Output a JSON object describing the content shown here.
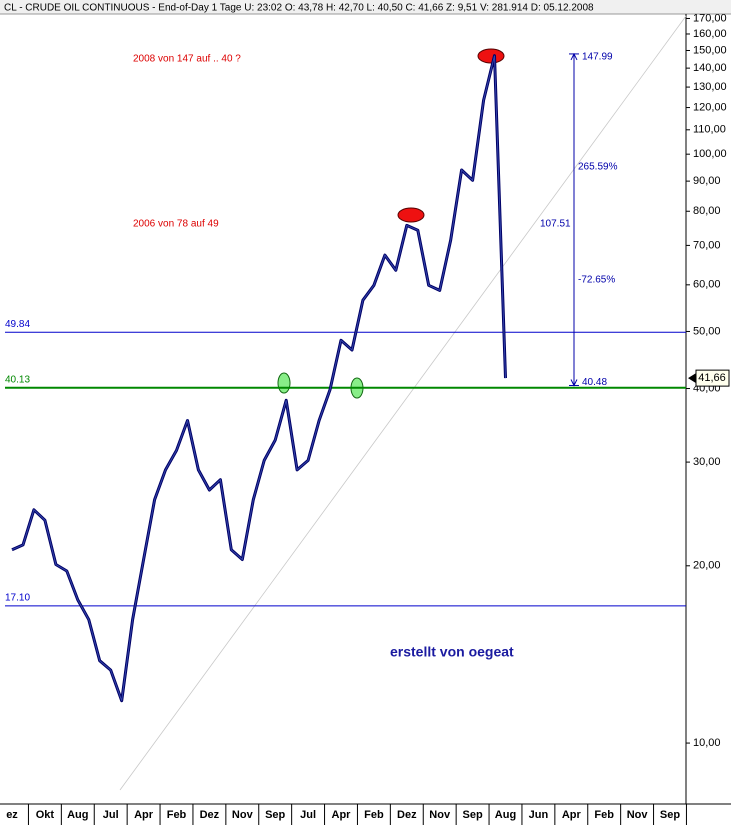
{
  "chart_data": {
    "type": "line",
    "title": "CL - CRUDE OIL CONTINUOUS - End-of-Day 1 Tage  U: 23:02  O: 43,78  H: 42,70  L: 40,50  C: 41,66  Z: 9,51  V: 281.914  D: 05.12.2008",
    "log_scale": true,
    "categories": [
      "ez",
      null,
      null,
      "Okt",
      null,
      null,
      "Aug",
      null,
      null,
      "Jul",
      null,
      null,
      "Apr",
      null,
      null,
      "Feb",
      null,
      null,
      "Dez",
      null,
      null,
      "Nov",
      null,
      null,
      "Sep",
      null,
      null,
      "Jul",
      null,
      null,
      "Apr",
      null,
      null,
      "Feb",
      null,
      null,
      "Dez",
      null,
      null,
      "Nov",
      null,
      null,
      "Sep",
      null,
      null,
      "Aug",
      null,
      null,
      "Jun",
      null,
      null,
      "Apr",
      null,
      null,
      "Feb",
      null,
      null,
      "Nov",
      null,
      null,
      "Sep",
      null,
      null
    ],
    "series": [
      {
        "name": "CL",
        "color": "#000066",
        "values": [
          21.3,
          21.7,
          24.9,
          23.9,
          20.1,
          19.6,
          17.5,
          16.2,
          13.8,
          13.3,
          11.8,
          16.2,
          20.5,
          25.9,
          29.1,
          31.4,
          35.3,
          29.1,
          26.9,
          28.0,
          21.3,
          20.5,
          25.9,
          30.2,
          32.7,
          38.2,
          29.1,
          30.2,
          35.3,
          39.8,
          48.3,
          46.5,
          56.5,
          59.9,
          67.4,
          63.5,
          75.7,
          74.3,
          59.9,
          58.7,
          71.5,
          94.0,
          90.3,
          123.5,
          147.0,
          41.66,
          null,
          null,
          null,
          null,
          null,
          null,
          null,
          null,
          null,
          null,
          null,
          null,
          null,
          null,
          null,
          null,
          null
        ]
      }
    ],
    "ylim": [
      7.88,
      173
    ],
    "yticks": [
      {
        "value": 170,
        "label": "170,00"
      },
      {
        "value": 160,
        "label": "160,00"
      },
      {
        "value": 150,
        "label": "150,00"
      },
      {
        "value": 140,
        "label": "140,00"
      },
      {
        "value": 130,
        "label": "130,00"
      },
      {
        "value": 120,
        "label": "120,00"
      },
      {
        "value": 110,
        "label": "110,00"
      },
      {
        "value": 100,
        "label": "100,00"
      },
      {
        "value": 90,
        "label": "90,00"
      },
      {
        "value": 80,
        "label": "80,00"
      },
      {
        "value": 70,
        "label": "70,00"
      },
      {
        "value": 60,
        "label": "60,00"
      },
      {
        "value": 50,
        "label": "50,00"
      },
      {
        "value": 40,
        "label": "40,00"
      },
      {
        "value": 30,
        "label": "30,00"
      },
      {
        "value": 20,
        "label": "20,00"
      },
      {
        "value": 10,
        "label": "10,00"
      }
    ],
    "hlines": [
      {
        "value": 49.84,
        "label": "49.84",
        "color": "#0000cc"
      },
      {
        "value": 40.13,
        "label": "40.13",
        "color": "#008800"
      },
      {
        "value": 17.1,
        "label": "17.10",
        "color": "#0000cc"
      }
    ],
    "last_price": {
      "value": 41.66,
      "label": "41,66"
    },
    "measure": {
      "range": [
        147.99,
        40.48
      ],
      "labels": [
        "147.99",
        "265.59%",
        "107.51",
        "-72.65%",
        "40.48"
      ],
      "color": "#0000aa"
    },
    "annotations": [
      {
        "text": "2008 von 147 auf .. 40 ?",
        "color": "#dd0000"
      },
      {
        "text": "2006 von 78 auf 49",
        "color": "#dd0000"
      },
      {
        "text": "erstellt von oegeat",
        "color": "#1a1aa0"
      }
    ]
  }
}
